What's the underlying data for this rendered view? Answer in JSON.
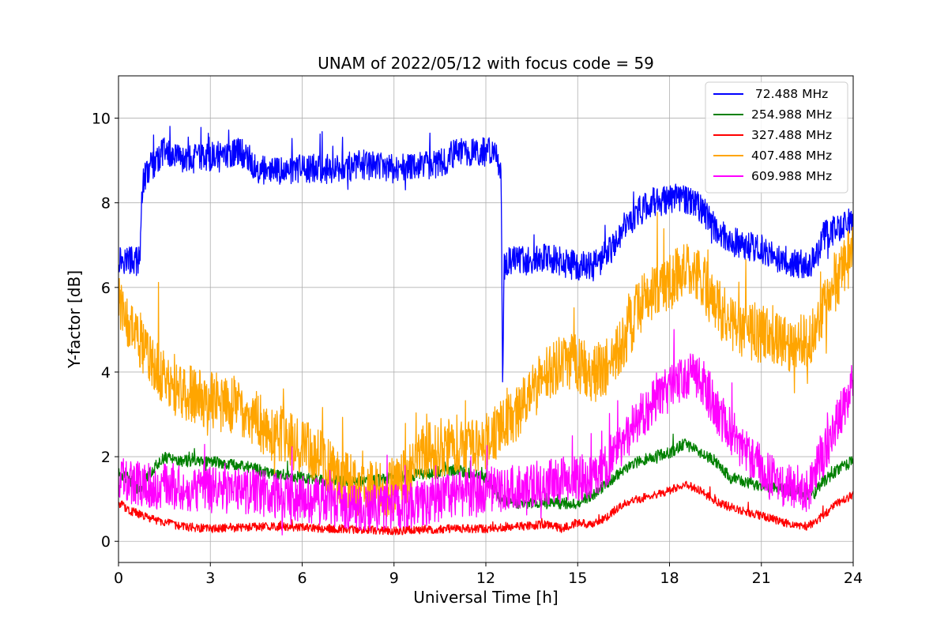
{
  "chart_data": {
    "type": "line",
    "title": "UNAM of 2022/05/12 with focus code = 59",
    "xlabel": "Universal Time [h]",
    "ylabel": "Y-factor [dB]",
    "xlim": [
      0,
      24
    ],
    "ylim": [
      -0.5,
      11
    ],
    "xticks": [
      0,
      3,
      6,
      9,
      12,
      15,
      18,
      21,
      24
    ],
    "yticks": [
      0,
      2,
      4,
      6,
      8,
      10
    ],
    "grid": true,
    "legend": "top-right",
    "series": [
      {
        "name": " 72.488 MHz",
        "color": "#0000ff",
        "noise": 0.35,
        "x": [
          0,
          0.7,
          0.75,
          0.8,
          1.0,
          1.5,
          2.0,
          3.0,
          4.0,
          4.3,
          4.5,
          5.0,
          6.0,
          7.0,
          8.0,
          9.0,
          10.0,
          10.5,
          11.0,
          11.5,
          12.0,
          12.3,
          12.5,
          12.55,
          12.6,
          12.7,
          13.0,
          13.5,
          14.0,
          15.0,
          15.5,
          16.0,
          16.5,
          17.0,
          17.5,
          18.0,
          18.5,
          19.0,
          19.5,
          20.0,
          20.5,
          21.0,
          21.5,
          22.0,
          22.5,
          22.8,
          23.0,
          23.5,
          24.0
        ],
        "y": [
          6.7,
          6.6,
          8.0,
          8.5,
          8.8,
          9.2,
          9.0,
          9.1,
          9.2,
          9.0,
          8.8,
          8.7,
          8.8,
          8.8,
          8.9,
          8.8,
          8.9,
          8.9,
          9.2,
          9.2,
          9.2,
          9.3,
          8.6,
          3.5,
          6.5,
          6.6,
          6.7,
          6.6,
          6.7,
          6.5,
          6.5,
          6.8,
          7.4,
          7.8,
          8.0,
          8.1,
          8.1,
          7.9,
          7.4,
          7.1,
          7.0,
          6.9,
          6.7,
          6.6,
          6.5,
          6.7,
          7.2,
          7.4,
          7.7
        ]
      },
      {
        "name": "254.988 MHz",
        "color": "#008000",
        "noise": 0.14,
        "x": [
          0,
          0.3,
          0.7,
          1.0,
          1.5,
          2.0,
          3.0,
          4.0,
          5.0,
          6.0,
          7.0,
          8.0,
          9.0,
          10.0,
          11.0,
          12.0,
          12.5,
          13.0,
          14.0,
          15.0,
          15.5,
          16.0,
          16.5,
          17.0,
          18.0,
          18.5,
          19.0,
          19.5,
          20.0,
          21.0,
          22.0,
          22.7,
          23.0,
          23.5,
          24.0
        ],
        "y": [
          1.6,
          1.5,
          1.2,
          1.6,
          2.0,
          1.9,
          1.9,
          1.8,
          1.6,
          1.5,
          1.4,
          1.4,
          1.5,
          1.6,
          1.7,
          1.5,
          1.0,
          0.9,
          0.9,
          0.9,
          1.1,
          1.4,
          1.7,
          1.9,
          2.1,
          2.3,
          2.1,
          1.9,
          1.5,
          1.3,
          1.2,
          1.1,
          1.4,
          1.7,
          1.9
        ]
      },
      {
        "name": "327.488 MHz",
        "color": "#ff0000",
        "noise": 0.1,
        "x": [
          0,
          0.3,
          1.0,
          2.0,
          3.0,
          5.0,
          7.0,
          9.0,
          11.0,
          12.0,
          13.0,
          14.0,
          14.5,
          15.0,
          15.5,
          16.0,
          16.5,
          17.0,
          18.0,
          18.5,
          19.0,
          19.5,
          20.0,
          21.0,
          22.0,
          22.5,
          23.0,
          23.5,
          24.0
        ],
        "y": [
          0.9,
          0.75,
          0.55,
          0.35,
          0.3,
          0.35,
          0.3,
          0.25,
          0.3,
          0.3,
          0.35,
          0.4,
          0.3,
          0.45,
          0.4,
          0.6,
          0.9,
          1.0,
          1.2,
          1.35,
          1.2,
          0.95,
          0.8,
          0.6,
          0.4,
          0.35,
          0.6,
          0.9,
          1.1
        ]
      },
      {
        "name": "407.488 MHz",
        "color": "#ffa500",
        "noise": 0.7,
        "x": [
          0,
          0.3,
          1.0,
          1.5,
          2.0,
          3.0,
          4.0,
          4.5,
          5.0,
          6.0,
          6.5,
          7.0,
          7.5,
          8.0,
          9.0,
          9.5,
          10.0,
          11.0,
          12.0,
          12.5,
          13.0,
          13.5,
          14.0,
          14.5,
          15.0,
          15.5,
          16.0,
          16.5,
          17.0,
          17.5,
          18.0,
          18.5,
          19.0,
          19.5,
          20.0,
          20.5,
          21.0,
          21.5,
          22.0,
          22.5,
          23.0,
          23.5,
          24.0
        ],
        "y": [
          5.6,
          5.3,
          4.3,
          3.8,
          3.6,
          3.3,
          3.2,
          2.9,
          2.6,
          2.3,
          2.0,
          1.6,
          1.4,
          1.2,
          1.3,
          1.6,
          2.1,
          2.3,
          2.3,
          2.7,
          3.0,
          3.5,
          3.9,
          4.2,
          4.2,
          3.9,
          4.2,
          4.8,
          5.5,
          5.9,
          6.1,
          6.5,
          6.3,
          5.6,
          5.2,
          5.0,
          4.9,
          4.8,
          4.7,
          4.7,
          5.5,
          6.2,
          6.9
        ]
      },
      {
        "name": "609.988 MHz",
        "color": "#ff00ff",
        "noise": 0.55,
        "x": [
          0,
          0.3,
          1.0,
          2.0,
          3.0,
          4.0,
          5.0,
          6.0,
          7.0,
          8.0,
          9.0,
          10.0,
          11.0,
          12.0,
          13.0,
          14.0,
          15.0,
          15.5,
          16.0,
          16.5,
          17.0,
          17.5,
          18.0,
          18.5,
          19.0,
          19.5,
          20.0,
          20.5,
          21.0,
          21.5,
          22.0,
          22.5,
          23.0,
          23.5,
          24.0
        ],
        "y": [
          1.6,
          1.4,
          1.3,
          1.3,
          1.2,
          1.2,
          1.1,
          1.0,
          0.9,
          0.8,
          0.8,
          0.9,
          1.1,
          1.2,
          1.3,
          1.4,
          1.5,
          1.5,
          1.9,
          2.4,
          2.9,
          3.3,
          3.6,
          3.9,
          3.9,
          3.1,
          2.6,
          2.1,
          1.7,
          1.4,
          1.3,
          1.2,
          2.0,
          2.9,
          3.7
        ]
      }
    ]
  }
}
